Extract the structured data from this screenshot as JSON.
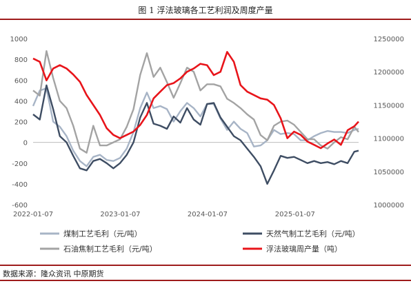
{
  "title": "图 1  浮法玻璃各工艺利润及周度产量",
  "source": "数据来源：隆众资讯 中原期货",
  "chart_data": {
    "type": "line",
    "title": "图 1  浮法玻璃各工艺利润及周度产量",
    "xlabel": "",
    "ylabel": "",
    "left_ylim": [
      -600,
      1000
    ],
    "left_ticks": [
      "1000",
      "800",
      "600",
      "400",
      "200",
      "0",
      "-200",
      "-400",
      "-600"
    ],
    "right_ylim": [
      1000000,
      1250000
    ],
    "right_ticks": [
      "1250000",
      "1200000",
      "1150000",
      "1100000",
      "1050000",
      "1000000"
    ],
    "x_ticks": [
      "2022-01-07",
      "2023-01-07",
      "2024-01-07",
      "2025-01-07"
    ],
    "x_range": [
      "2022-01-07",
      "2025-09-30"
    ],
    "grid": false,
    "legend_position": "bottom",
    "series": [
      {
        "name": "煤制工艺毛利（元/吨）",
        "axis": "left",
        "color": "#a7b4c6",
        "points": [
          [
            "2022-01-07",
            350
          ],
          [
            "2022-02-04",
            500
          ],
          [
            "2022-03-04",
            520
          ],
          [
            "2022-04-01",
            200
          ],
          [
            "2022-04-29",
            150
          ],
          [
            "2022-05-27",
            60
          ],
          [
            "2022-06-24",
            -80
          ],
          [
            "2022-07-22",
            -180
          ],
          [
            "2022-08-19",
            -230
          ],
          [
            "2022-09-16",
            -140
          ],
          [
            "2022-10-14",
            -120
          ],
          [
            "2022-11-11",
            -170
          ],
          [
            "2022-12-09",
            -180
          ],
          [
            "2023-01-06",
            -150
          ],
          [
            "2023-02-03",
            -60
          ],
          [
            "2023-03-03",
            100
          ],
          [
            "2023-03-31",
            330
          ],
          [
            "2023-04-28",
            480
          ],
          [
            "2023-05-26",
            330
          ],
          [
            "2023-06-23",
            350
          ],
          [
            "2023-07-21",
            320
          ],
          [
            "2023-08-18",
            200
          ],
          [
            "2023-09-15",
            300
          ],
          [
            "2023-10-13",
            380
          ],
          [
            "2023-11-10",
            330
          ],
          [
            "2023-12-08",
            250
          ],
          [
            "2024-01-05",
            370
          ],
          [
            "2024-02-02",
            370
          ],
          [
            "2024-03-01",
            230
          ],
          [
            "2024-03-29",
            120
          ],
          [
            "2024-04-26",
            200
          ],
          [
            "2024-05-24",
            130
          ],
          [
            "2024-06-21",
            90
          ],
          [
            "2024-07-19",
            -40
          ],
          [
            "2024-08-16",
            -30
          ],
          [
            "2024-09-13",
            20
          ],
          [
            "2024-10-11",
            120
          ],
          [
            "2024-11-08",
            80
          ],
          [
            "2024-12-06",
            90
          ],
          [
            "2025-01-03",
            80
          ],
          [
            "2025-01-31",
            20
          ],
          [
            "2025-02-28",
            20
          ],
          [
            "2025-03-28",
            60
          ],
          [
            "2025-04-25",
            90
          ],
          [
            "2025-05-23",
            110
          ],
          [
            "2025-06-20",
            100
          ],
          [
            "2025-07-18",
            100
          ],
          [
            "2025-08-15",
            90
          ],
          [
            "2025-09-12",
            120
          ],
          [
            "2025-09-30",
            130
          ]
        ]
      },
      {
        "name": "天然气制工艺毛利（元/吨）",
        "axis": "left",
        "color": "#3e4d63",
        "points": [
          [
            "2022-01-07",
            270
          ],
          [
            "2022-02-04",
            220
          ],
          [
            "2022-03-04",
            550
          ],
          [
            "2022-04-01",
            320
          ],
          [
            "2022-04-29",
            60
          ],
          [
            "2022-05-27",
            0
          ],
          [
            "2022-06-24",
            -130
          ],
          [
            "2022-07-22",
            -250
          ],
          [
            "2022-08-19",
            -270
          ],
          [
            "2022-09-16",
            -180
          ],
          [
            "2022-10-14",
            -160
          ],
          [
            "2022-11-11",
            -200
          ],
          [
            "2022-12-09",
            -250
          ],
          [
            "2023-01-06",
            -200
          ],
          [
            "2023-02-03",
            -120
          ],
          [
            "2023-03-03",
            0
          ],
          [
            "2023-03-31",
            240
          ],
          [
            "2023-04-28",
            380
          ],
          [
            "2023-05-26",
            180
          ],
          [
            "2023-06-23",
            160
          ],
          [
            "2023-07-21",
            130
          ],
          [
            "2023-08-18",
            250
          ],
          [
            "2023-09-15",
            190
          ],
          [
            "2023-10-13",
            330
          ],
          [
            "2023-11-10",
            220
          ],
          [
            "2023-12-08",
            170
          ],
          [
            "2024-01-05",
            370
          ],
          [
            "2024-02-02",
            380
          ],
          [
            "2024-03-01",
            240
          ],
          [
            "2024-03-29",
            150
          ],
          [
            "2024-04-26",
            60
          ],
          [
            "2024-05-24",
            20
          ],
          [
            "2024-06-21",
            -60
          ],
          [
            "2024-07-19",
            -140
          ],
          [
            "2024-08-16",
            -230
          ],
          [
            "2024-09-13",
            -400
          ],
          [
            "2024-10-11",
            -270
          ],
          [
            "2024-11-08",
            -130
          ],
          [
            "2024-12-06",
            -150
          ],
          [
            "2025-01-03",
            -140
          ],
          [
            "2025-01-31",
            -170
          ],
          [
            "2025-02-28",
            -200
          ],
          [
            "2025-03-28",
            -180
          ],
          [
            "2025-04-25",
            -200
          ],
          [
            "2025-05-23",
            -190
          ],
          [
            "2025-06-20",
            -210
          ],
          [
            "2025-07-18",
            -180
          ],
          [
            "2025-08-15",
            -200
          ],
          [
            "2025-09-12",
            -90
          ],
          [
            "2025-09-30",
            -80
          ]
        ]
      },
      {
        "name": "石油焦制工艺毛利（元/吨）",
        "axis": "left",
        "color": "#a3a3a3",
        "points": [
          [
            "2022-01-07",
            500
          ],
          [
            "2022-02-04",
            450
          ],
          [
            "2022-03-04",
            880
          ],
          [
            "2022-04-01",
            620
          ],
          [
            "2022-04-29",
            400
          ],
          [
            "2022-05-27",
            330
          ],
          [
            "2022-06-24",
            160
          ],
          [
            "2022-07-22",
            -60
          ],
          [
            "2022-08-19",
            -100
          ],
          [
            "2022-09-16",
            160
          ],
          [
            "2022-10-14",
            -30
          ],
          [
            "2022-11-11",
            -30
          ],
          [
            "2022-12-09",
            0
          ],
          [
            "2023-01-06",
            30
          ],
          [
            "2023-02-03",
            150
          ],
          [
            "2023-03-03",
            320
          ],
          [
            "2023-03-31",
            650
          ],
          [
            "2023-04-28",
            860
          ],
          [
            "2023-05-26",
            630
          ],
          [
            "2023-06-23",
            720
          ],
          [
            "2023-07-21",
            580
          ],
          [
            "2023-08-18",
            430
          ],
          [
            "2023-09-15",
            570
          ],
          [
            "2023-10-13",
            720
          ],
          [
            "2023-11-10",
            680
          ],
          [
            "2023-12-08",
            500
          ],
          [
            "2024-01-05",
            560
          ],
          [
            "2024-02-02",
            560
          ],
          [
            "2024-03-01",
            540
          ],
          [
            "2024-03-29",
            420
          ],
          [
            "2024-04-26",
            380
          ],
          [
            "2024-05-24",
            330
          ],
          [
            "2024-06-21",
            270
          ],
          [
            "2024-07-19",
            220
          ],
          [
            "2024-08-16",
            70
          ],
          [
            "2024-09-13",
            20
          ],
          [
            "2024-10-11",
            160
          ],
          [
            "2024-11-08",
            200
          ],
          [
            "2024-12-06",
            210
          ],
          [
            "2025-01-03",
            170
          ],
          [
            "2025-01-31",
            100
          ],
          [
            "2025-02-28",
            30
          ],
          [
            "2025-03-28",
            30
          ],
          [
            "2025-04-25",
            -30
          ],
          [
            "2025-05-23",
            -60
          ],
          [
            "2025-06-20",
            0
          ],
          [
            "2025-07-18",
            50
          ],
          [
            "2025-08-15",
            30
          ],
          [
            "2025-09-12",
            150
          ],
          [
            "2025-09-30",
            100
          ]
        ]
      },
      {
        "name": "浮法玻璃周产量（吨）",
        "axis": "right",
        "color": "#e8141a",
        "points": [
          [
            "2022-01-07",
            1220000
          ],
          [
            "2022-02-04",
            1215000
          ],
          [
            "2022-03-04",
            1187000
          ],
          [
            "2022-04-01",
            1205000
          ],
          [
            "2022-04-29",
            1210000
          ],
          [
            "2022-05-27",
            1205000
          ],
          [
            "2022-06-24",
            1196000
          ],
          [
            "2022-07-22",
            1185000
          ],
          [
            "2022-08-19",
            1165000
          ],
          [
            "2022-09-16",
            1150000
          ],
          [
            "2022-10-14",
            1135000
          ],
          [
            "2022-11-11",
            1115000
          ],
          [
            "2022-12-09",
            1105000
          ],
          [
            "2023-01-06",
            1100000
          ],
          [
            "2023-02-03",
            1105000
          ],
          [
            "2023-03-03",
            1110000
          ],
          [
            "2023-03-31",
            1120000
          ],
          [
            "2023-04-28",
            1135000
          ],
          [
            "2023-05-26",
            1160000
          ],
          [
            "2023-06-23",
            1170000
          ],
          [
            "2023-07-21",
            1180000
          ],
          [
            "2023-08-18",
            1183000
          ],
          [
            "2023-09-15",
            1190000
          ],
          [
            "2023-10-13",
            1200000
          ],
          [
            "2023-11-10",
            1205000
          ],
          [
            "2023-12-08",
            1212000
          ],
          [
            "2024-01-05",
            1210000
          ],
          [
            "2024-02-02",
            1195000
          ],
          [
            "2024-03-01",
            1200000
          ],
          [
            "2024-03-29",
            1230000
          ],
          [
            "2024-04-26",
            1215000
          ],
          [
            "2024-05-24",
            1180000
          ],
          [
            "2024-06-21",
            1170000
          ],
          [
            "2024-07-19",
            1165000
          ],
          [
            "2024-08-16",
            1160000
          ],
          [
            "2024-09-13",
            1158000
          ],
          [
            "2024-10-11",
            1150000
          ],
          [
            "2024-11-08",
            1130000
          ],
          [
            "2024-12-06",
            1100000
          ],
          [
            "2025-01-03",
            1110000
          ],
          [
            "2025-01-31",
            1105000
          ],
          [
            "2025-02-28",
            1095000
          ],
          [
            "2025-03-28",
            1090000
          ],
          [
            "2025-04-25",
            1085000
          ],
          [
            "2025-05-23",
            1092000
          ],
          [
            "2025-06-20",
            1098000
          ],
          [
            "2025-07-18",
            1090000
          ],
          [
            "2025-08-15",
            1112000
          ],
          [
            "2025-09-12",
            1118000
          ],
          [
            "2025-09-30",
            1125000
          ]
        ]
      }
    ]
  }
}
